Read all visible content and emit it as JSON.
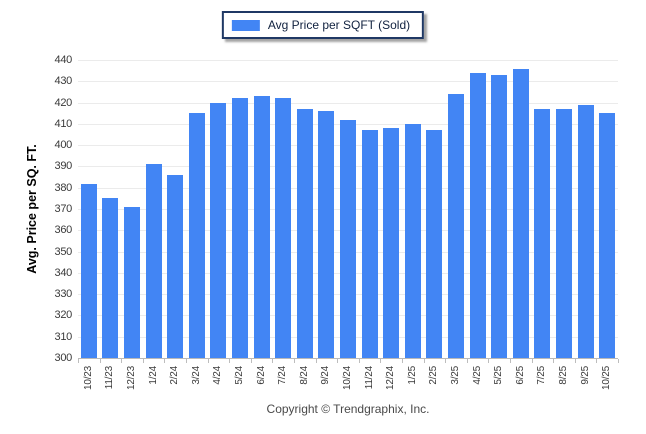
{
  "legend": {
    "label": "Avg Price per SQFT (Sold)",
    "swatch_color": "#4285f4",
    "border_color": "#1f3864"
  },
  "footer": {
    "copyright": "Copyright © Trendgraphix, Inc."
  },
  "chart_data": {
    "type": "bar",
    "title": "",
    "xlabel": "",
    "ylabel": "Avg. Price per SQ. FT.",
    "ylim": [
      300,
      440
    ],
    "ytick_step": 10,
    "grid": true,
    "legend_position": "top-center",
    "categories": [
      "10/23",
      "11/23",
      "12/23",
      "1/24",
      "2/24",
      "3/24",
      "4/24",
      "5/24",
      "6/24",
      "7/24",
      "8/24",
      "9/24",
      "10/24",
      "11/24",
      "12/24",
      "1/25",
      "2/25",
      "3/25",
      "4/25",
      "5/25",
      "6/25",
      "7/25",
      "8/25",
      "9/25",
      "10/25"
    ],
    "series": [
      {
        "name": "Avg Price per SQFT (Sold)",
        "color": "#4285f4",
        "values": [
          382,
          375,
          371,
          391,
          386,
          415,
          420,
          422,
          423,
          422,
          417,
          416,
          412,
          407,
          408,
          410,
          407,
          424,
          434,
          433,
          436,
          417,
          417,
          419,
          415
        ]
      }
    ]
  }
}
